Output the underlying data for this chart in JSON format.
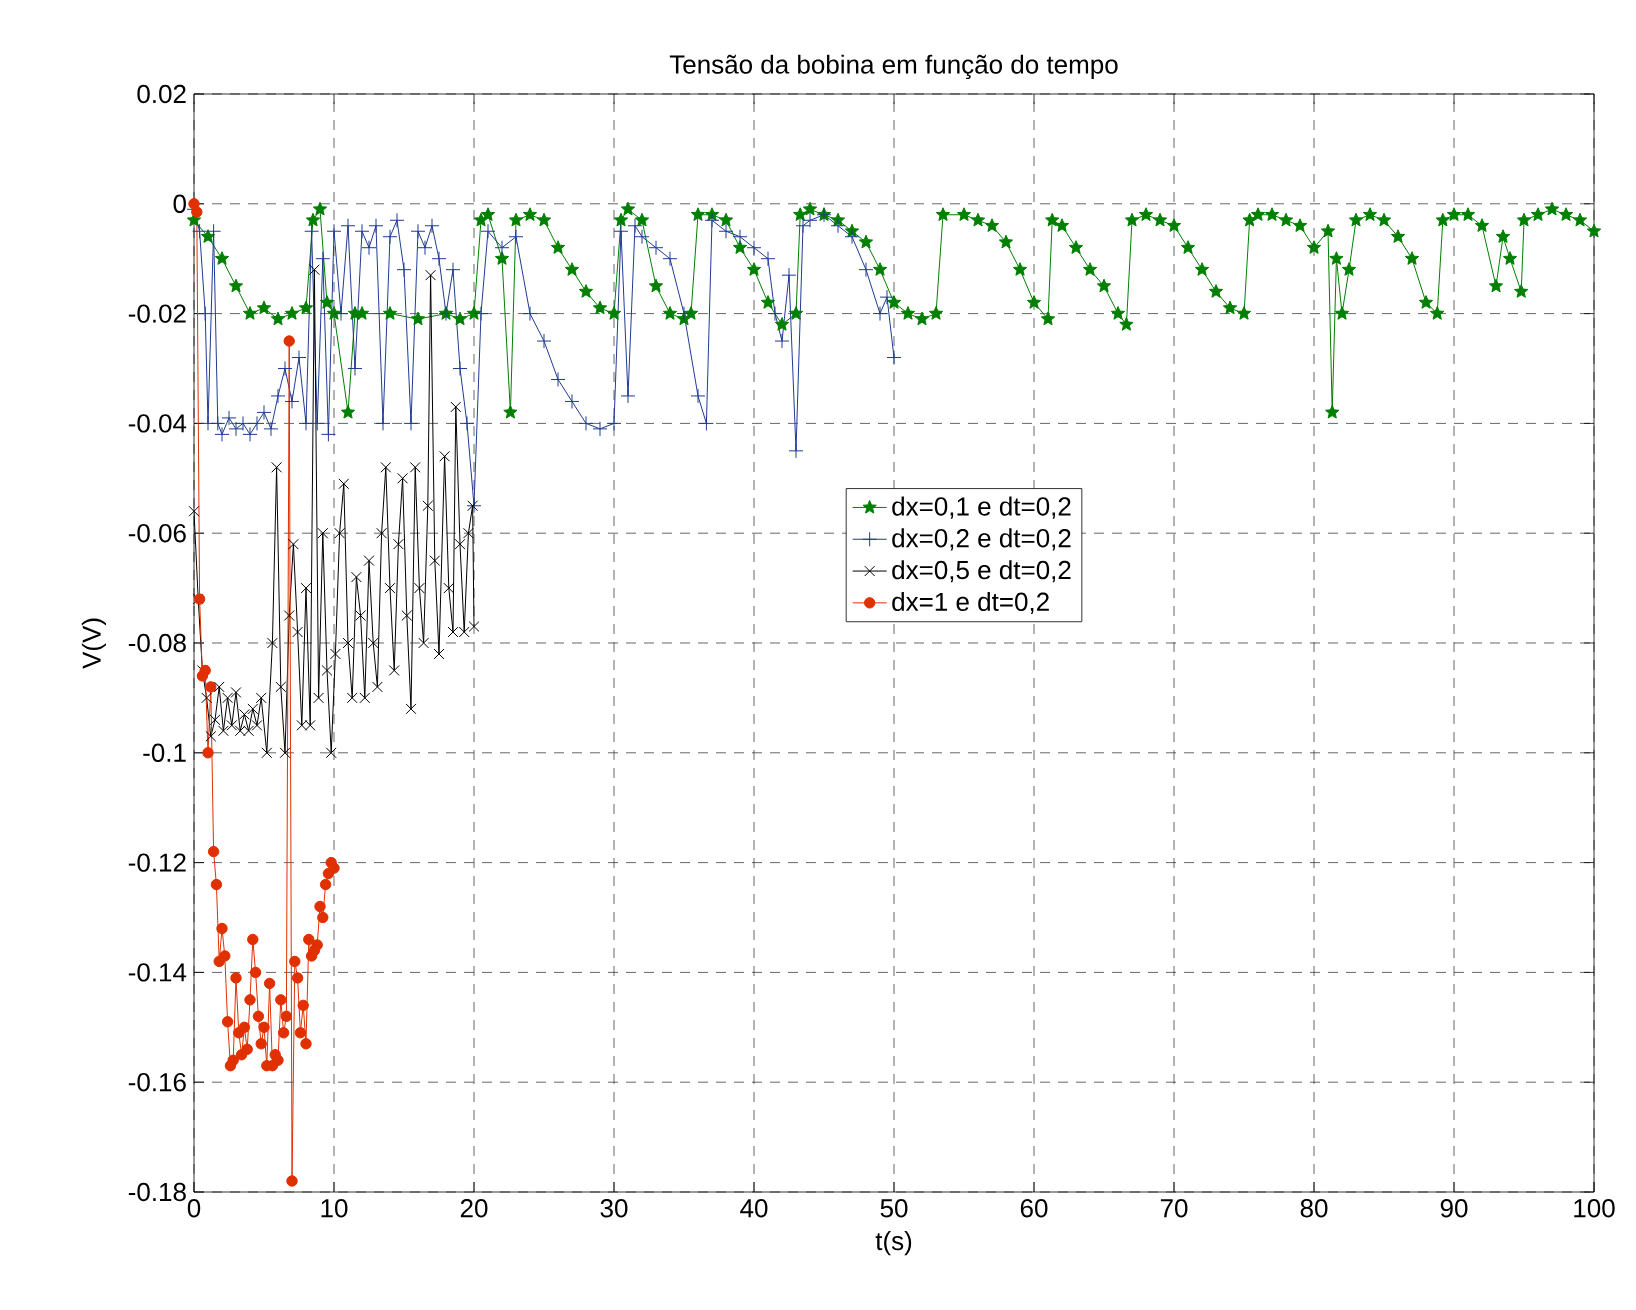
{
  "chart_data": {
    "type": "line",
    "title": "Tensão da bobina em função do tempo",
    "xlabel": "t(s)",
    "ylabel": "V(V)",
    "xlim": [
      0,
      100
    ],
    "xticks": [
      0,
      10,
      20,
      30,
      40,
      50,
      60,
      70,
      80,
      90,
      100
    ],
    "ylim": [
      -0.18,
      0.02
    ],
    "yticks": [
      -0.18,
      -0.16,
      -0.14,
      -0.12,
      -0.1,
      -0.08,
      -0.06,
      -0.04,
      -0.02,
      0,
      0.02
    ],
    "grid": true,
    "legend": "center",
    "line_style": "solid",
    "series": [
      {
        "name": "dx=0,1 e dt=0,2",
        "color": "#008000",
        "marker": "star",
        "x": [
          0,
          1,
          2,
          3,
          4,
          5,
          6,
          7,
          8,
          8.5,
          9,
          9.5,
          10,
          11,
          11.5,
          12,
          14,
          16,
          18,
          19,
          20,
          20.5,
          21,
          22,
          22.6,
          23,
          24,
          25,
          26,
          27,
          28,
          29,
          30,
          30.5,
          31,
          32,
          33,
          34,
          35,
          35.5,
          36,
          37,
          38,
          39,
          40,
          41,
          42,
          43,
          43.3,
          44,
          45,
          46,
          47,
          48,
          49,
          50,
          51,
          52,
          53,
          53.5,
          55,
          56,
          57,
          58,
          59,
          60,
          61,
          61.3,
          62,
          63,
          64,
          65,
          66,
          66.6,
          67,
          68,
          69,
          70,
          71,
          72,
          73,
          74,
          75,
          75.4,
          76,
          77,
          78,
          79,
          80,
          81,
          81.3,
          81.6,
          82,
          82.5,
          83,
          84,
          85,
          86,
          87,
          88,
          88.8,
          89.2,
          90,
          91,
          92,
          93,
          93.5,
          94,
          94.8,
          95,
          96,
          97,
          98,
          99,
          100
        ],
        "values": [
          -0.003,
          -0.006,
          -0.01,
          -0.015,
          -0.02,
          -0.019,
          -0.021,
          -0.02,
          -0.019,
          -0.003,
          -0.001,
          -0.018,
          -0.02,
          -0.038,
          -0.02,
          -0.02,
          -0.02,
          -0.021,
          -0.02,
          -0.021,
          -0.02,
          -0.003,
          -0.002,
          -0.01,
          -0.038,
          -0.003,
          -0.002,
          -0.003,
          -0.008,
          -0.012,
          -0.016,
          -0.019,
          -0.02,
          -0.003,
          -0.001,
          -0.003,
          -0.015,
          -0.02,
          -0.021,
          -0.02,
          -0.002,
          -0.002,
          -0.003,
          -0.008,
          -0.012,
          -0.018,
          -0.022,
          -0.02,
          -0.002,
          -0.001,
          -0.002,
          -0.003,
          -0.005,
          -0.007,
          -0.012,
          -0.018,
          -0.02,
          -0.021,
          -0.02,
          -0.002,
          -0.002,
          -0.003,
          -0.004,
          -0.007,
          -0.012,
          -0.018,
          -0.021,
          -0.003,
          -0.004,
          -0.008,
          -0.012,
          -0.015,
          -0.02,
          -0.022,
          -0.003,
          -0.002,
          -0.003,
          -0.004,
          -0.008,
          -0.012,
          -0.016,
          -0.019,
          -0.02,
          -0.003,
          -0.002,
          -0.002,
          -0.003,
          -0.004,
          -0.008,
          -0.005,
          -0.038,
          -0.01,
          -0.02,
          -0.012,
          -0.003,
          -0.002,
          -0.003,
          -0.006,
          -0.01,
          -0.018,
          -0.02,
          -0.003,
          -0.002,
          -0.002,
          -0.004,
          -0.015,
          -0.006,
          -0.01,
          -0.016,
          -0.003,
          -0.002,
          -0.001,
          -0.002,
          -0.003,
          -0.005
        ]
      },
      {
        "name": "dx=0,2 e dt=0,2",
        "color": "#1f3a93",
        "marker": "plus",
        "x": [
          0,
          0.4,
          0.8,
          1,
          1.4,
          1.7,
          2,
          2.5,
          3,
          3.5,
          4,
          4.5,
          5,
          5.5,
          6,
          6.5,
          7,
          7.5,
          8,
          8.4,
          8.8,
          9.2,
          9.6,
          10,
          10.5,
          11,
          11.5,
          12,
          12.5,
          13,
          13.5,
          14,
          14.5,
          15,
          15.5,
          16,
          16.5,
          17,
          17.5,
          18,
          18.5,
          19,
          19.5,
          20,
          20.5,
          21,
          22,
          23,
          24,
          25,
          26,
          27,
          28,
          29,
          30,
          30.5,
          31,
          31.5,
          32,
          33,
          34,
          35,
          36,
          36.6,
          37,
          38,
          39,
          40,
          41,
          41.5,
          42,
          42.5,
          43,
          43.5,
          44,
          45,
          46,
          47,
          48,
          49,
          49.5,
          50
        ],
        "values": [
          -0.001,
          -0.005,
          -0.02,
          -0.04,
          -0.005,
          -0.04,
          -0.042,
          -0.039,
          -0.041,
          -0.04,
          -0.042,
          -0.04,
          -0.038,
          -0.041,
          -0.035,
          -0.03,
          -0.036,
          -0.028,
          -0.04,
          -0.005,
          -0.04,
          -0.01,
          -0.042,
          -0.005,
          -0.02,
          -0.004,
          -0.03,
          -0.005,
          -0.008,
          -0.004,
          -0.04,
          -0.006,
          -0.003,
          -0.012,
          -0.04,
          -0.005,
          -0.008,
          -0.004,
          -0.01,
          -0.02,
          -0.012,
          -0.03,
          -0.04,
          -0.055,
          -0.02,
          -0.005,
          -0.008,
          -0.006,
          -0.02,
          -0.025,
          -0.032,
          -0.036,
          -0.04,
          -0.041,
          -0.04,
          -0.005,
          -0.035,
          -0.004,
          -0.006,
          -0.008,
          -0.01,
          -0.02,
          -0.035,
          -0.04,
          -0.003,
          -0.005,
          -0.006,
          -0.008,
          -0.01,
          -0.02,
          -0.025,
          -0.013,
          -0.045,
          -0.004,
          -0.003,
          -0.002,
          -0.004,
          -0.006,
          -0.012,
          -0.02,
          -0.017,
          -0.028
        ]
      },
      {
        "name": "dx=0,5 e dt=0,2",
        "color": "#000000",
        "marker": "cross",
        "x": [
          0,
          0.3,
          0.6,
          0.9,
          1.2,
          1.5,
          1.8,
          2.1,
          2.4,
          2.7,
          3,
          3.3,
          3.6,
          3.9,
          4.2,
          4.5,
          4.8,
          5.2,
          5.6,
          5.9,
          6.2,
          6.5,
          6.8,
          7.1,
          7.4,
          7.7,
          8,
          8.3,
          8.6,
          8.9,
          9.2,
          9.5,
          9.8,
          10.1,
          10.4,
          10.7,
          11,
          11.3,
          11.6,
          11.9,
          12.2,
          12.5,
          12.8,
          13.1,
          13.4,
          13.7,
          14,
          14.3,
          14.6,
          14.9,
          15.2,
          15.5,
          15.8,
          16.1,
          16.4,
          16.7,
          16.9,
          17.2,
          17.5,
          17.9,
          18.2,
          18.5,
          18.7,
          19,
          19.3,
          19.6,
          19.9,
          20
        ],
        "values": [
          -0.056,
          -0.072,
          -0.085,
          -0.09,
          -0.097,
          -0.094,
          -0.088,
          -0.096,
          -0.09,
          -0.095,
          -0.089,
          -0.096,
          -0.093,
          -0.096,
          -0.092,
          -0.095,
          -0.09,
          -0.1,
          -0.08,
          -0.048,
          -0.088,
          -0.1,
          -0.075,
          -0.062,
          -0.078,
          -0.095,
          -0.07,
          -0.095,
          -0.012,
          -0.09,
          -0.06,
          -0.085,
          -0.1,
          -0.082,
          -0.06,
          -0.051,
          -0.08,
          -0.09,
          -0.068,
          -0.075,
          -0.09,
          -0.065,
          -0.08,
          -0.088,
          -0.06,
          -0.048,
          -0.07,
          -0.085,
          -0.062,
          -0.05,
          -0.075,
          -0.092,
          -0.048,
          -0.07,
          -0.08,
          -0.055,
          -0.013,
          -0.065,
          -0.082,
          -0.046,
          -0.07,
          -0.078,
          -0.037,
          -0.062,
          -0.078,
          -0.06,
          -0.055,
          -0.077
        ]
      },
      {
        "name": "dx=1 e dt=0,2",
        "color": "#e03000",
        "marker": "circle",
        "x": [
          0,
          0.2,
          0.4,
          0.6,
          0.8,
          1,
          1.2,
          1.4,
          1.6,
          1.8,
          2,
          2.2,
          2.4,
          2.6,
          2.8,
          3,
          3.2,
          3.4,
          3.6,
          3.8,
          4,
          4.2,
          4.4,
          4.6,
          4.8,
          5,
          5.2,
          5.4,
          5.6,
          5.8,
          6,
          6.2,
          6.4,
          6.6,
          6.8,
          7,
          7.2,
          7.4,
          7.6,
          7.8,
          8,
          8.2,
          8.4,
          8.6,
          8.8,
          9,
          9.2,
          9.4,
          9.6,
          9.8,
          10
        ],
        "values": [
          0,
          -0.0015,
          -0.072,
          -0.086,
          -0.085,
          -0.1,
          -0.088,
          -0.118,
          -0.124,
          -0.138,
          -0.132,
          -0.137,
          -0.149,
          -0.157,
          -0.156,
          -0.141,
          -0.151,
          -0.155,
          -0.15,
          -0.154,
          -0.145,
          -0.134,
          -0.14,
          -0.148,
          -0.153,
          -0.15,
          -0.157,
          -0.142,
          -0.157,
          -0.155,
          -0.156,
          -0.145,
          -0.151,
          -0.148,
          -0.025,
          -0.178,
          -0.138,
          -0.141,
          -0.151,
          -0.146,
          -0.153,
          -0.134,
          -0.137,
          -0.136,
          -0.135,
          -0.128,
          -0.13,
          -0.124,
          -0.122,
          -0.12,
          -0.121
        ]
      }
    ]
  }
}
